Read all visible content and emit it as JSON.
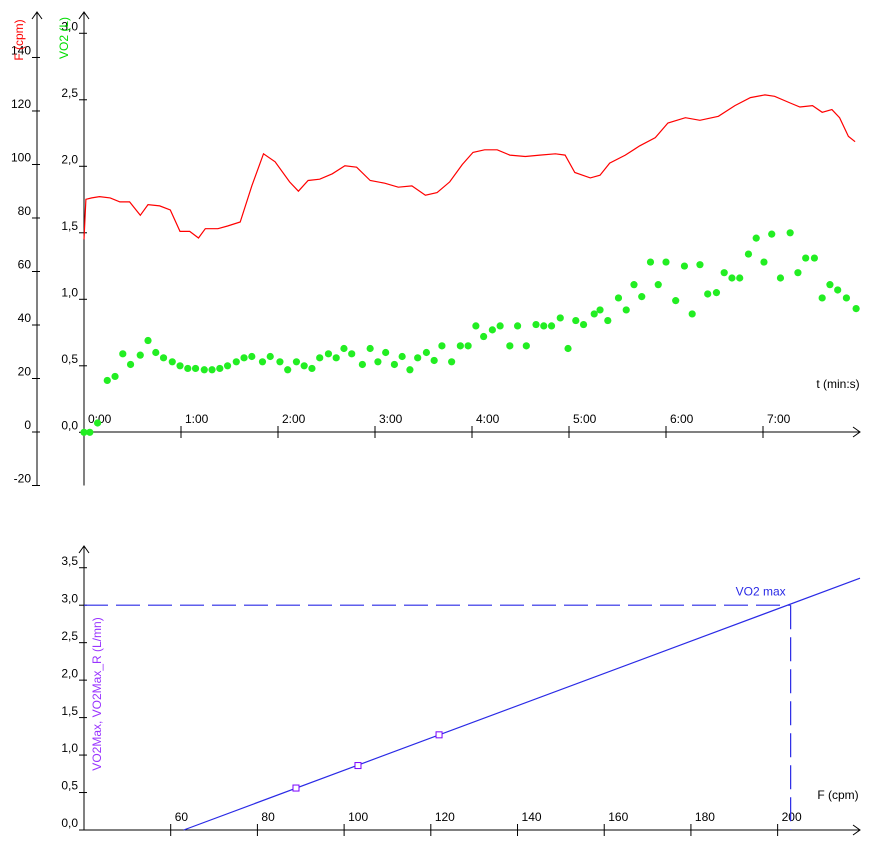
{
  "chart_data": [
    {
      "type": "line",
      "xlabel": "t (min:s)",
      "ylabel": "F (cpm)",
      "ylabel_color": "#ff0000",
      "y2label": "VO2 (L)",
      "y2label_color": "#00dd00",
      "xlim": [
        0,
        8
      ],
      "xticks": [
        {
          "value": 0,
          "label": "0:00"
        },
        {
          "value": 1,
          "label": "1:00"
        },
        {
          "value": 2,
          "label": "2:00"
        },
        {
          "value": 3,
          "label": "3:00"
        },
        {
          "value": 4,
          "label": "4:00"
        },
        {
          "value": 5,
          "label": "5:00"
        },
        {
          "value": 6,
          "label": "6:00"
        },
        {
          "value": 7,
          "label": "7:00"
        }
      ],
      "ylim": [
        -20,
        157
      ],
      "yticks": [
        -20,
        0,
        20,
        40,
        60,
        80,
        100,
        120,
        140
      ],
      "y2lim": [
        -0.4,
        3.16
      ],
      "y2ticks": [
        {
          "value": 0,
          "label": "0,0"
        },
        {
          "value": 0.5,
          "label": "0,5"
        },
        {
          "value": 1,
          "label": "1,0"
        },
        {
          "value": 1.5,
          "label": "1,5"
        },
        {
          "value": 2,
          "label": "2,0"
        },
        {
          "value": 2.5,
          "label": "2,5"
        },
        {
          "value": 3,
          "label": "3,0"
        }
      ],
      "series": [
        {
          "color": "#ff0000",
          "mode": "line",
          "x": [
            0,
            0.02,
            0.08,
            0.16,
            0.27,
            0.37,
            0.47,
            0.58,
            0.66,
            0.78,
            0.89,
            0.99,
            1.09,
            1.18,
            1.25,
            1.38,
            1.48,
            1.61,
            1.73,
            1.85,
            1.97,
            2.12,
            2.21,
            2.31,
            2.43,
            2.56,
            2.69,
            2.81,
            2.95,
            3.1,
            3.24,
            3.38,
            3.52,
            3.64,
            3.77,
            3.9,
            4.01,
            4.13,
            4.26,
            4.39,
            4.55,
            4.7,
            4.86,
            4.96,
            5.06,
            5.22,
            5.32,
            5.42,
            5.58,
            5.73,
            5.89,
            6.02,
            6.2,
            6.35,
            6.54,
            6.71,
            6.87,
            7.02,
            7.12,
            7.28,
            7.38,
            7.51,
            7.61,
            7.71,
            7.79,
            7.88,
            7.95
          ],
          "values": [
            72,
            87,
            87.5,
            88,
            87.5,
            86,
            86,
            81,
            85,
            84.5,
            83,
            75,
            75,
            72.5,
            76,
            76,
            77,
            78.5,
            92,
            104,
            101,
            93.5,
            90,
            94,
            94.5,
            96.5,
            99.5,
            99,
            94,
            93,
            91.5,
            92,
            88.5,
            89.5,
            93.5,
            100,
            104.5,
            105.5,
            105.5,
            103.5,
            103,
            103.5,
            104,
            103.5,
            97,
            95,
            96,
            100.5,
            103.5,
            107,
            110,
            115.5,
            117.5,
            116.5,
            118,
            122,
            125,
            126,
            125.5,
            123,
            121.5,
            122,
            119.5,
            120.5,
            117.5,
            110.5,
            108.5
          ]
        },
        {
          "color": "#22ee22",
          "mode": "scatter",
          "axis": "y2",
          "x": [
            0,
            0.06,
            0.14,
            0.24,
            0.32,
            0.4,
            0.48,
            0.58,
            0.66,
            0.74,
            0.82,
            0.91,
            0.99,
            1.07,
            1.15,
            1.24,
            1.32,
            1.4,
            1.48,
            1.57,
            1.65,
            1.73,
            1.84,
            1.92,
            2.02,
            2.1,
            2.19,
            2.27,
            2.35,
            2.43,
            2.52,
            2.6,
            2.68,
            2.76,
            2.87,
            2.95,
            3.03,
            3.11,
            3.2,
            3.28,
            3.36,
            3.44,
            3.53,
            3.61,
            3.69,
            3.79,
            3.88,
            3.96,
            4.04,
            4.12,
            4.21,
            4.29,
            4.39,
            4.47,
            4.56,
            4.66,
            4.74,
            4.82,
            4.91,
            4.99,
            5.07,
            5.15,
            5.26,
            5.32,
            5.4,
            5.51,
            5.59,
            5.67,
            5.75,
            5.84,
            5.92,
            6.0,
            6.1,
            6.19,
            6.27,
            6.35,
            6.43,
            6.52,
            6.6,
            6.68,
            6.76,
            6.85,
            6.93,
            7.01,
            7.09,
            7.18,
            7.28,
            7.36,
            7.44,
            7.53,
            7.61,
            7.69,
            7.77,
            7.86,
            7.96
          ],
          "values": [
            0,
            0,
            0.07,
            0.39,
            0.42,
            0.59,
            0.51,
            0.58,
            0.69,
            0.6,
            0.56,
            0.53,
            0.5,
            0.48,
            0.48,
            0.47,
            0.47,
            0.48,
            0.5,
            0.53,
            0.56,
            0.57,
            0.53,
            0.57,
            0.53,
            0.47,
            0.53,
            0.5,
            0.48,
            0.56,
            0.59,
            0.56,
            0.63,
            0.59,
            0.51,
            0.63,
            0.53,
            0.6,
            0.51,
            0.57,
            0.47,
            0.56,
            0.6,
            0.54,
            0.65,
            0.53,
            0.65,
            0.65,
            0.8,
            0.72,
            0.77,
            0.8,
            0.65,
            0.8,
            0.65,
            0.81,
            0.8,
            0.8,
            0.86,
            0.63,
            0.84,
            0.81,
            0.89,
            0.92,
            0.84,
            1.01,
            0.92,
            1.11,
            1.02,
            1.28,
            1.11,
            1.28,
            0.99,
            1.25,
            0.89,
            1.26,
            1.04,
            1.05,
            1.2,
            1.16,
            1.16,
            1.34,
            1.46,
            1.28,
            1.49,
            1.16,
            1.5,
            1.2,
            1.31,
            1.31,
            1.01,
            1.11,
            1.07,
            1.01,
            0.93
          ]
        }
      ]
    },
    {
      "type": "line",
      "xlabel": "F (cpm)",
      "ylabel": "VO2Max, VO2Max_R (L/mn)",
      "ylabel_color": "#9933ff",
      "xlim": [
        40,
        219
      ],
      "xticks": [
        60,
        80,
        100,
        120,
        140,
        160,
        180,
        200
      ],
      "ylim": [
        0,
        3.79
      ],
      "yticks": [
        {
          "value": 0,
          "label": "0,0"
        },
        {
          "value": 0.5,
          "label": "0,5"
        },
        {
          "value": 1,
          "label": "1,0"
        },
        {
          "value": 1.5,
          "label": "1,5"
        },
        {
          "value": 2,
          "label": "2,0"
        },
        {
          "value": 2.5,
          "label": "2,5"
        },
        {
          "value": 3,
          "label": "3,0"
        },
        {
          "value": 3.5,
          "label": "3,5"
        }
      ],
      "series": [
        {
          "color": "#2a2ae6",
          "mode": "line",
          "x": [
            63,
            219
          ],
          "values": [
            0,
            3.36
          ]
        },
        {
          "color": "#7a00ff",
          "mode": "square",
          "x": [
            88.9,
            103.2,
            121.9
          ],
          "values": [
            0.56,
            0.86,
            1.27
          ]
        }
      ],
      "vo2max": {
        "label": "VO2 max",
        "x": 203,
        "y": 3.0,
        "color": "#2a2ae6"
      }
    }
  ]
}
